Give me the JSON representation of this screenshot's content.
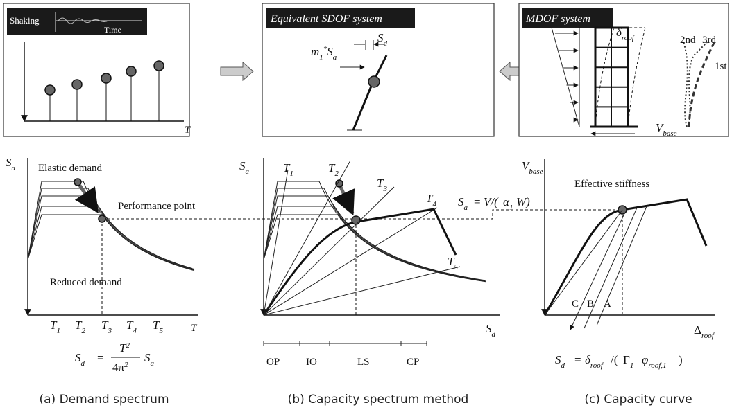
{
  "demand_input": {
    "label": "Shaking",
    "time": "Time",
    "axis": "T"
  },
  "sdof": {
    "title": "Equivalent SDOF system",
    "displacement": [
      "S",
      "d"
    ],
    "force": [
      "m",
      "1",
      "*",
      "S",
      "a"
    ]
  },
  "mdof": {
    "title": "MDOF system",
    "roof": [
      "δ",
      "roof"
    ],
    "modes": [
      "2nd",
      "3rd",
      "1st"
    ],
    "base": [
      "V",
      "base"
    ]
  },
  "demand_spectrum": {
    "y_axis": [
      "S",
      "a"
    ],
    "elastic": "Elastic demand",
    "performance": "Performance point",
    "reduced": "Reduced demand",
    "periods": [
      [
        "T",
        "1"
      ],
      [
        "T",
        "2"
      ],
      [
        "T",
        "3"
      ],
      [
        "T",
        "4"
      ],
      [
        "T",
        "5"
      ]
    ],
    "x_axis": "T",
    "formula": {
      "lhs": [
        "S",
        "d"
      ],
      "equals": "=",
      "numerator": [
        "T",
        "2"
      ],
      "denominator": [
        "4π",
        "2"
      ],
      "factor": [
        "S",
        "a"
      ]
    },
    "caption": "(a) Demand spectrum"
  },
  "capacity_spectrum": {
    "y_axis": [
      "S",
      "a"
    ],
    "periods": [
      [
        "T",
        "1"
      ],
      [
        "T",
        "2"
      ],
      [
        "T",
        "3"
      ],
      [
        "T",
        "4"
      ],
      [
        "T",
        "5"
      ]
    ],
    "x_axis": [
      "S",
      "d"
    ],
    "levels": [
      "OP",
      "IO",
      "LS",
      "CP"
    ],
    "caption": "(b) Capacity spectrum method"
  },
  "capacity_curve": {
    "y_axis": [
      "V",
      "base"
    ],
    "x_axis": [
      "Δ",
      "roof"
    ],
    "stiffness": "Effective stiffness",
    "conversion": {
      "lhs": [
        "S",
        "a"
      ],
      "equals": "=",
      "rhs": "V/(",
      "alpha": [
        "α",
        "1"
      ],
      "tail": "W)"
    },
    "branches": [
      "C",
      "B",
      "A"
    ],
    "formula": {
      "lhs": [
        "S",
        "d"
      ],
      "equals": "=",
      "num": [
        "δ",
        "roof"
      ],
      "sep": "/(",
      "gamma": [
        "Γ",
        "1"
      ],
      "phi": [
        "φ",
        "roof,1"
      ],
      "close": ")"
    },
    "caption": "(c) Capacity curve"
  }
}
